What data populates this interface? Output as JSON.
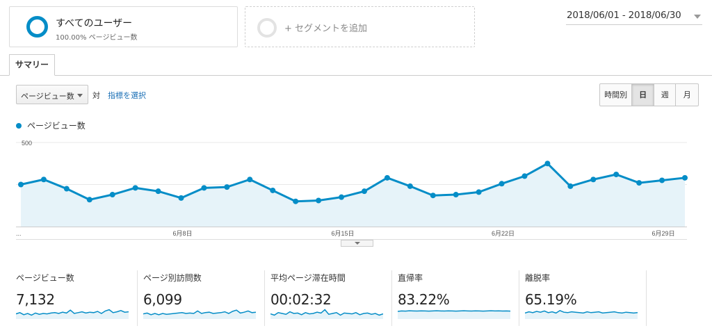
{
  "segments": {
    "active": {
      "title": "すべてのユーザー",
      "subtitle": "100.00% ページビュー数"
    },
    "add_label": "+ セグメントを追加"
  },
  "date_range": "2018/06/01 - 2018/06/30",
  "tabs": [
    {
      "label": "サマリー",
      "active": true
    }
  ],
  "controls": {
    "metric_select": "ページビュー数",
    "vs_label": "対",
    "choose_metric": "指標を選択",
    "granularity": [
      {
        "label": "時間別",
        "active": false
      },
      {
        "label": "日",
        "active": true
      },
      {
        "label": "週",
        "active": false
      },
      {
        "label": "月",
        "active": false
      }
    ]
  },
  "colors": {
    "accent": "#058dc7",
    "area_fill": "#e6f3f9",
    "link": "#1a6fb5"
  },
  "chart_data": {
    "type": "area",
    "series_label": "ページビュー数",
    "x": [
      "6/1",
      "6/2",
      "6/3",
      "6/4",
      "6/5",
      "6/6",
      "6/7",
      "6/8",
      "6/9",
      "6/10",
      "6/11",
      "6/12",
      "6/13",
      "6/14",
      "6/15",
      "6/16",
      "6/17",
      "6/18",
      "6/19",
      "6/20",
      "6/21",
      "6/22",
      "6/23",
      "6/24",
      "6/25",
      "6/26",
      "6/27",
      "6/28",
      "6/29",
      "6/30"
    ],
    "values": [
      250,
      280,
      225,
      160,
      190,
      230,
      210,
      170,
      230,
      235,
      280,
      215,
      150,
      155,
      175,
      210,
      290,
      240,
      185,
      190,
      205,
      255,
      300,
      375,
      240,
      280,
      310,
      260,
      275,
      290
    ],
    "x_tick_labels": [
      "...",
      "6月8日",
      "6月15日",
      "6月22日",
      "6月29日"
    ],
    "y_tick_labels": [
      "500",
      "250"
    ],
    "ylim": [
      0,
      500
    ],
    "grid": true
  },
  "sparklines": [
    {
      "label": "ページビュー数",
      "value": "7,132",
      "points": [
        0.45,
        0.6,
        0.35,
        0.5,
        0.3,
        0.55,
        0.4,
        0.5,
        0.45,
        0.55,
        0.6,
        0.5,
        0.65,
        0.55,
        0.9,
        0.5,
        0.6,
        0.7,
        0.55,
        0.65,
        0.6,
        0.75,
        0.5,
        0.8,
        0.95,
        0.6,
        0.7,
        0.85,
        0.65,
        0.7
      ]
    },
    {
      "label": "ページ別訪問数",
      "value": "6,099",
      "points": [
        0.45,
        0.55,
        0.35,
        0.5,
        0.35,
        0.5,
        0.4,
        0.45,
        0.5,
        0.55,
        0.6,
        0.5,
        0.55,
        0.5,
        0.8,
        0.5,
        0.6,
        0.65,
        0.5,
        0.55,
        0.6,
        0.7,
        0.5,
        0.75,
        0.9,
        0.55,
        0.65,
        0.8,
        0.6,
        0.65
      ]
    },
    {
      "label": "平均ページ滞在時間",
      "value": "00:02:32",
      "points": [
        0.45,
        0.3,
        0.6,
        0.5,
        0.4,
        0.7,
        0.5,
        0.55,
        0.35,
        0.6,
        0.45,
        0.5,
        0.65,
        0.55,
        0.95,
        0.4,
        0.5,
        0.6,
        0.3,
        0.55,
        0.5,
        0.45,
        0.6,
        0.35,
        0.5,
        0.55,
        0.4,
        0.5,
        0.3,
        0.45
      ]
    },
    {
      "label": "直帰率",
      "value": "83.22%",
      "points": [
        0.75,
        0.8,
        0.78,
        0.82,
        0.8,
        0.79,
        0.81,
        0.8,
        0.78,
        0.8,
        0.82,
        0.8,
        0.79,
        0.81,
        0.8,
        0.78,
        0.8,
        0.82,
        0.8,
        0.79,
        0.81,
        0.8,
        0.78,
        0.8,
        0.82,
        0.8,
        0.81,
        0.79,
        0.8,
        0.78
      ]
    },
    {
      "label": "離脱率",
      "value": "65.19%",
      "points": [
        0.55,
        0.7,
        0.6,
        0.75,
        0.65,
        0.8,
        0.6,
        0.7,
        0.55,
        0.85,
        0.65,
        0.6,
        0.7,
        0.65,
        0.6,
        0.55,
        0.7,
        0.6,
        0.65,
        0.7,
        0.55,
        0.6,
        0.65,
        0.7,
        0.6,
        0.55,
        0.65,
        0.6,
        0.55,
        0.6
      ]
    }
  ]
}
